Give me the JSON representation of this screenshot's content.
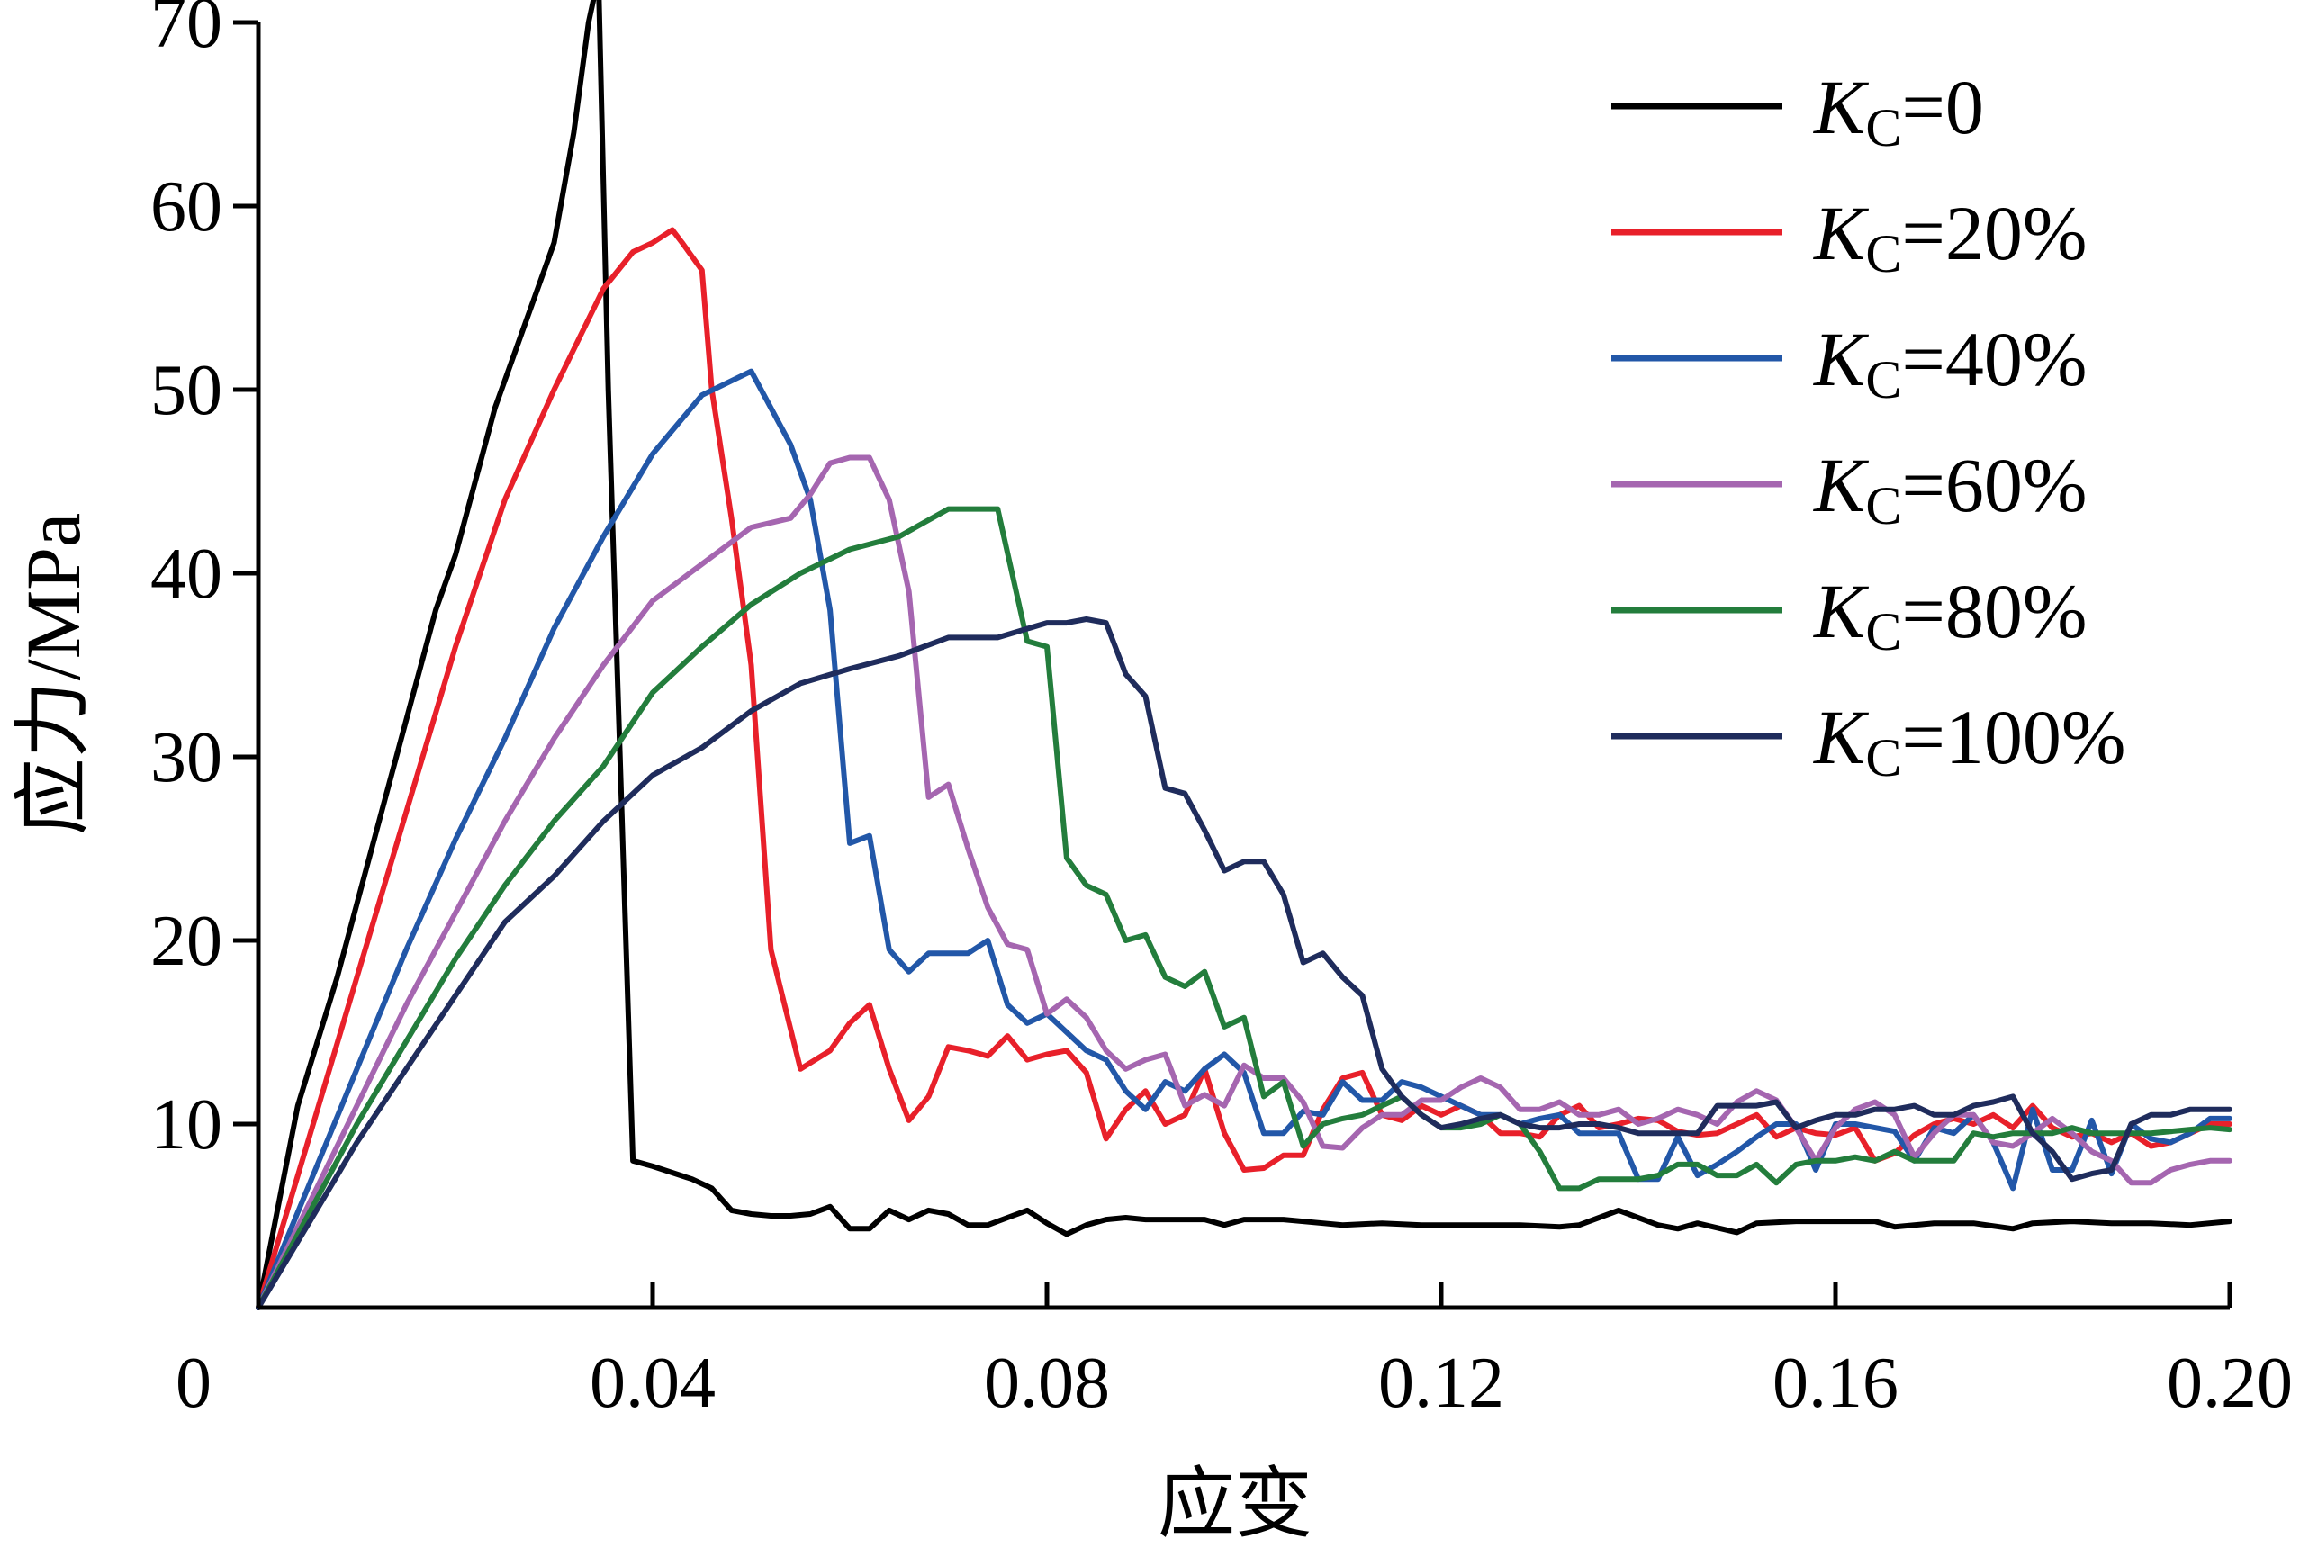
{
  "chart_data": {
    "type": "line",
    "xlabel": "应变",
    "ylabel": "应力/MPa",
    "xlim": [
      0,
      0.2
    ],
    "ylim": [
      0,
      70
    ],
    "xticks": [
      0,
      0.04,
      0.08,
      0.12,
      0.16,
      0.2
    ],
    "xtick_labels": [
      "0",
      "0.04",
      "0.08",
      "0.12",
      "0.16",
      "0.20"
    ],
    "yticks": [
      10,
      20,
      30,
      40,
      50,
      60,
      70
    ],
    "ytick_labels": [
      "10",
      "20",
      "30",
      "40",
      "50",
      "60",
      "70"
    ],
    "grid": false,
    "legend_position": "top-right",
    "series": [
      {
        "name": "KC=0",
        "label_main": "K",
        "label_sub": "C",
        "label_rest": "=0",
        "color": "#000000",
        "x": [
          0,
          0.004,
          0.008,
          0.012,
          0.016,
          0.018,
          0.02,
          0.022,
          0.024,
          0.026,
          0.028,
          0.03,
          0.032,
          0.0335,
          0.0345,
          0.0355,
          0.038,
          0.04,
          0.044,
          0.046,
          0.048,
          0.05,
          0.052,
          0.054,
          0.056,
          0.058,
          0.06,
          0.062,
          0.064,
          0.066,
          0.068,
          0.07,
          0.072,
          0.074,
          0.076,
          0.078,
          0.08,
          0.082,
          0.084,
          0.086,
          0.088,
          0.09,
          0.092,
          0.094,
          0.096,
          0.098,
          0.1,
          0.104,
          0.108,
          0.11,
          0.114,
          0.118,
          0.12,
          0.124,
          0.128,
          0.132,
          0.134,
          0.138,
          0.142,
          0.144,
          0.146,
          0.15,
          0.152,
          0.156,
          0.16,
          0.164,
          0.166,
          0.17,
          0.174,
          0.178,
          0.18,
          0.184,
          0.188,
          0.192,
          0.196,
          0.2
        ],
        "y": [
          0,
          11,
          18,
          26,
          34,
          38,
          41,
          45,
          49,
          52,
          55,
          58,
          64,
          70,
          72.5,
          50,
          8,
          7.7,
          7,
          6.5,
          5.3,
          5.1,
          5,
          5,
          5.1,
          5.5,
          4.3,
          4.3,
          5.3,
          4.8,
          5.3,
          5.1,
          4.5,
          4.5,
          4.9,
          5.3,
          4.6,
          4,
          4.5,
          4.8,
          4.9,
          4.8,
          4.8,
          4.8,
          4.8,
          4.5,
          4.8,
          4.8,
          4.6,
          4.5,
          4.6,
          4.5,
          4.5,
          4.5,
          4.5,
          4.4,
          4.5,
          5.3,
          4.5,
          4.3,
          4.6,
          4.1,
          4.6,
          4.7,
          4.7,
          4.7,
          4.4,
          4.6,
          4.6,
          4.3,
          4.6,
          4.7,
          4.6,
          4.6,
          4.5,
          4.7
        ]
      },
      {
        "name": "KC=20%",
        "label_main": "K",
        "label_sub": "C",
        "label_rest": "=20%",
        "color": "#e8202a",
        "x": [
          0,
          0.005,
          0.01,
          0.015,
          0.02,
          0.025,
          0.03,
          0.035,
          0.038,
          0.04,
          0.042,
          0.043,
          0.045,
          0.046,
          0.048,
          0.05,
          0.052,
          0.055,
          0.058,
          0.06,
          0.062,
          0.064,
          0.066,
          0.068,
          0.07,
          0.072,
          0.074,
          0.076,
          0.078,
          0.08,
          0.082,
          0.084,
          0.086,
          0.088,
          0.09,
          0.092,
          0.094,
          0.096,
          0.098,
          0.1,
          0.102,
          0.104,
          0.106,
          0.108,
          0.11,
          0.112,
          0.114,
          0.116,
          0.118,
          0.12,
          0.122,
          0.124,
          0.126,
          0.128,
          0.13,
          0.132,
          0.134,
          0.136,
          0.138,
          0.14,
          0.142,
          0.144,
          0.146,
          0.148,
          0.15,
          0.152,
          0.154,
          0.156,
          0.158,
          0.16,
          0.162,
          0.164,
          0.166,
          0.168,
          0.17,
          0.172,
          0.174,
          0.176,
          0.178,
          0.18,
          0.182,
          0.184,
          0.186,
          0.188,
          0.19,
          0.192,
          0.194,
          0.196,
          0.198,
          0.2
        ],
        "y": [
          0,
          9,
          18,
          27,
          36,
          44,
          50,
          55.5,
          57.5,
          58,
          58.7,
          58,
          56.5,
          50,
          43,
          35,
          19.5,
          13,
          14,
          15.5,
          16.5,
          13,
          10.2,
          11.5,
          14.2,
          14,
          13.7,
          14.8,
          13.5,
          13.8,
          14,
          12.8,
          9.2,
          10.8,
          11.8,
          10,
          10.5,
          13,
          9.5,
          7.5,
          7.6,
          8.3,
          8.3,
          10.8,
          12.5,
          12.8,
          10.5,
          10.2,
          11,
          10.5,
          11,
          10.5,
          9.5,
          9.5,
          9.3,
          10.5,
          11,
          9.8,
          10,
          10.3,
          10.2,
          9.6,
          9.4,
          9.5,
          10,
          10.5,
          9.3,
          9.8,
          9.5,
          9.4,
          9.8,
          8,
          8.4,
          9.4,
          10,
          10.3,
          10,
          10.5,
          9.8,
          11,
          9.8,
          9.3,
          9.5,
          9,
          9.5,
          8.8,
          9,
          9.5,
          10,
          10
        ]
      },
      {
        "name": "KC=40%",
        "label_main": "K",
        "label_sub": "C",
        "label_rest": "=40%",
        "color": "#2257a8",
        "x": [
          0,
          0.005,
          0.01,
          0.015,
          0.02,
          0.025,
          0.03,
          0.035,
          0.04,
          0.045,
          0.05,
          0.054,
          0.056,
          0.058,
          0.06,
          0.062,
          0.064,
          0.066,
          0.068,
          0.07,
          0.072,
          0.074,
          0.076,
          0.078,
          0.08,
          0.082,
          0.084,
          0.086,
          0.088,
          0.09,
          0.092,
          0.094,
          0.096,
          0.098,
          0.1,
          0.102,
          0.104,
          0.106,
          0.108,
          0.11,
          0.112,
          0.114,
          0.116,
          0.118,
          0.12,
          0.122,
          0.124,
          0.126,
          0.128,
          0.13,
          0.132,
          0.134,
          0.136,
          0.138,
          0.14,
          0.142,
          0.144,
          0.146,
          0.148,
          0.15,
          0.152,
          0.154,
          0.156,
          0.158,
          0.16,
          0.162,
          0.164,
          0.166,
          0.168,
          0.17,
          0.172,
          0.174,
          0.176,
          0.178,
          0.18,
          0.182,
          0.184,
          0.186,
          0.188,
          0.19,
          0.192,
          0.194,
          0.196,
          0.198,
          0.2
        ],
        "y": [
          0,
          6.5,
          13,
          19.5,
          25.5,
          31,
          37,
          42,
          46.5,
          49.7,
          51,
          47,
          44,
          38,
          25.3,
          25.7,
          19.5,
          18.3,
          19.3,
          19.3,
          19.3,
          20,
          16.5,
          15.5,
          16,
          15,
          14,
          13.5,
          11.8,
          10.8,
          12.3,
          11.8,
          13,
          13.8,
          12.8,
          9.5,
          9.5,
          10.7,
          10.5,
          12.3,
          11.3,
          11.3,
          12.3,
          12,
          11.5,
          11,
          10.5,
          10.5,
          10,
          10.3,
          10.5,
          9.5,
          9.5,
          9.5,
          7,
          7,
          9.3,
          7.2,
          7.8,
          8.5,
          9.3,
          10,
          10,
          7.5,
          10,
          10,
          9.8,
          9.6,
          8,
          9.8,
          9.5,
          10.5,
          9,
          6.5,
          10.8,
          7.5,
          7.5,
          10.2,
          7.3,
          10,
          9.2,
          9,
          9.5,
          10.3,
          10.3
        ]
      },
      {
        "name": "KC=60%",
        "label_main": "K",
        "label_sub": "C",
        "label_rest": "=60%",
        "color": "#a566b0",
        "x": [
          0,
          0.005,
          0.01,
          0.015,
          0.02,
          0.025,
          0.03,
          0.035,
          0.04,
          0.045,
          0.05,
          0.054,
          0.056,
          0.058,
          0.06,
          0.062,
          0.064,
          0.066,
          0.068,
          0.07,
          0.072,
          0.074,
          0.076,
          0.078,
          0.08,
          0.082,
          0.084,
          0.086,
          0.088,
          0.09,
          0.092,
          0.094,
          0.096,
          0.098,
          0.1,
          0.102,
          0.104,
          0.106,
          0.108,
          0.11,
          0.112,
          0.114,
          0.116,
          0.118,
          0.12,
          0.122,
          0.124,
          0.126,
          0.128,
          0.13,
          0.132,
          0.134,
          0.136,
          0.138,
          0.14,
          0.142,
          0.144,
          0.146,
          0.148,
          0.15,
          0.152,
          0.154,
          0.156,
          0.158,
          0.16,
          0.162,
          0.164,
          0.166,
          0.168,
          0.17,
          0.172,
          0.174,
          0.176,
          0.178,
          0.18,
          0.182,
          0.184,
          0.186,
          0.188,
          0.19,
          0.192,
          0.194,
          0.196,
          0.198,
          0.2
        ],
        "y": [
          0,
          5.5,
          11,
          16.5,
          21.5,
          26.5,
          31,
          35,
          38.5,
          40.5,
          42.5,
          43,
          44.3,
          46,
          46.3,
          46.3,
          44,
          39,
          27.8,
          28.5,
          25,
          21.8,
          19.8,
          19.5,
          16,
          16.8,
          15.8,
          14,
          13,
          13.5,
          13.8,
          11,
          11.6,
          11,
          13.2,
          12.5,
          12.5,
          11.2,
          8.8,
          8.7,
          9.8,
          10.5,
          10.5,
          11.3,
          11.3,
          12,
          12.5,
          12,
          10.8,
          10.8,
          11.2,
          10.5,
          10.5,
          10.8,
          10,
          10.3,
          10.8,
          10.5,
          10,
          11.2,
          11.8,
          11.3,
          9.8,
          8,
          9.8,
          10.8,
          11.2,
          10.5,
          8.2,
          9.5,
          10.5,
          10.5,
          9,
          8.8,
          9.5,
          10.3,
          9.5,
          8.5,
          8,
          6.8,
          6.8,
          7.5,
          7.8,
          8,
          8
        ]
      },
      {
        "name": "KC=80%",
        "label_main": "K",
        "label_sub": "C",
        "label_rest": "=80%",
        "color": "#237d3c",
        "x": [
          0,
          0.005,
          0.01,
          0.015,
          0.02,
          0.025,
          0.03,
          0.035,
          0.04,
          0.045,
          0.05,
          0.055,
          0.06,
          0.065,
          0.07,
          0.075,
          0.078,
          0.08,
          0.082,
          0.084,
          0.086,
          0.088,
          0.09,
          0.092,
          0.094,
          0.096,
          0.098,
          0.1,
          0.102,
          0.104,
          0.106,
          0.108,
          0.11,
          0.112,
          0.114,
          0.116,
          0.118,
          0.12,
          0.122,
          0.124,
          0.126,
          0.128,
          0.13,
          0.132,
          0.134,
          0.136,
          0.138,
          0.14,
          0.142,
          0.144,
          0.146,
          0.148,
          0.15,
          0.152,
          0.154,
          0.156,
          0.158,
          0.16,
          0.162,
          0.164,
          0.166,
          0.168,
          0.17,
          0.172,
          0.174,
          0.176,
          0.178,
          0.18,
          0.182,
          0.184,
          0.186,
          0.188,
          0.19,
          0.192,
          0.194,
          0.196,
          0.198,
          0.2
        ],
        "y": [
          0,
          5,
          10,
          14.5,
          19,
          23,
          26.5,
          29.5,
          33.5,
          36,
          38.3,
          40,
          41.3,
          42,
          43.5,
          43.5,
          36.3,
          36,
          24.5,
          23,
          22.5,
          20,
          20.3,
          18,
          17.5,
          18.3,
          15.3,
          15.8,
          11.5,
          12.3,
          8.8,
          10,
          10.3,
          10.5,
          11,
          11.5,
          10.5,
          9.8,
          9.8,
          10,
          10.5,
          10,
          8.5,
          6.5,
          6.5,
          7,
          7,
          7,
          7.2,
          7.8,
          7.8,
          7.2,
          7.2,
          7.8,
          6.8,
          7.8,
          8,
          8,
          8.2,
          8,
          8.5,
          8,
          8,
          8,
          9.5,
          9.3,
          9.5,
          9.5,
          9.5,
          9.8,
          9.5,
          9.5,
          9.5,
          9.5,
          9.6,
          9.7,
          9.8,
          9.7
        ]
      },
      {
        "name": "KC=100%",
        "label_main": "K",
        "label_sub": "C",
        "label_rest": "=100%",
        "color": "#1f2c5c",
        "x": [
          0,
          0.005,
          0.01,
          0.015,
          0.02,
          0.025,
          0.03,
          0.035,
          0.04,
          0.045,
          0.05,
          0.055,
          0.06,
          0.065,
          0.07,
          0.075,
          0.08,
          0.082,
          0.084,
          0.086,
          0.088,
          0.09,
          0.092,
          0.094,
          0.096,
          0.098,
          0.1,
          0.102,
          0.104,
          0.106,
          0.108,
          0.11,
          0.112,
          0.114,
          0.116,
          0.118,
          0.12,
          0.122,
          0.124,
          0.126,
          0.128,
          0.13,
          0.132,
          0.134,
          0.136,
          0.138,
          0.14,
          0.142,
          0.144,
          0.146,
          0.148,
          0.15,
          0.152,
          0.154,
          0.156,
          0.158,
          0.16,
          0.162,
          0.164,
          0.166,
          0.168,
          0.17,
          0.172,
          0.174,
          0.176,
          0.178,
          0.18,
          0.182,
          0.184,
          0.186,
          0.188,
          0.19,
          0.192,
          0.194,
          0.196,
          0.198,
          0.2
        ],
        "y": [
          0,
          4.5,
          9,
          13,
          17,
          21,
          23.5,
          26.5,
          29,
          30.5,
          32.5,
          34,
          34.8,
          35.5,
          36.5,
          36.5,
          37.3,
          37.3,
          37.5,
          37.3,
          34.5,
          33.3,
          28.3,
          28,
          26,
          23.8,
          24.3,
          24.3,
          22.5,
          18.8,
          19.3,
          18,
          17,
          13,
          11.5,
          10.5,
          9.8,
          10,
          10.3,
          10.5,
          10,
          9.8,
          9.8,
          10,
          10,
          9.8,
          9.5,
          9.5,
          9.5,
          9.5,
          11,
          11,
          11,
          11.2,
          9.8,
          10.2,
          10.5,
          10.5,
          10.8,
          10.8,
          11,
          10.5,
          10.5,
          11,
          11.2,
          11.5,
          9.5,
          8.5,
          7,
          7.3,
          7.5,
          10,
          10.5,
          10.5,
          10.8,
          10.8,
          10.8
        ]
      }
    ]
  }
}
